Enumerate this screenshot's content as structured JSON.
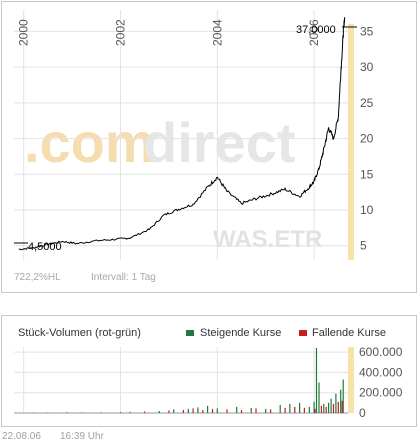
{
  "colors": {
    "price_line": "#000000",
    "grid": "#e3e3e3",
    "tick_text": "#555555",
    "muted_text": "#a9a9a9",
    "highlight_bar": "#f7e3a8",
    "watermark": "#d5d5d5",
    "watermark_accent": "#f6ddb0",
    "volume_up": "#1f7a3a",
    "volume_down": "#c81e1e"
  },
  "watermark": {
    "part1": ".com",
    "part2": "direct",
    "symbol": "WAS.ETR"
  },
  "price_panel": {
    "high_label": "37,0000",
    "low_label": "4,5000",
    "change_text": "722,2%HL",
    "interval_text": "Intervall: 1 Tag"
  },
  "volume_panel": {
    "title": "Stück-Volumen (rot-grün)",
    "legend_up": "Steigende Kurse",
    "legend_down": "Fallende Kurse"
  },
  "footer": {
    "date": "22.08.06",
    "time": "16:39 Uhr"
  },
  "chart_data": [
    {
      "type": "line",
      "series": [
        {
          "x": [
            1999.9,
            2000.2,
            2000.5,
            2000.8,
            2001.1,
            2001.5,
            2001.9,
            2002.2,
            2002.6,
            2002.9,
            2003.2,
            2003.5,
            2003.8,
            2004.0,
            2004.2,
            2004.5,
            2004.8,
            2005.1,
            2005.4,
            2005.7,
            2005.9,
            2006.0,
            2006.1,
            2006.2,
            2006.3,
            2006.4,
            2006.5,
            2006.55,
            2006.6,
            2006.63
          ],
          "y": [
            4.5,
            4.7,
            5.2,
            5.6,
            5.3,
            5.7,
            5.9,
            6.1,
            7.3,
            9.3,
            10.1,
            10.8,
            13.2,
            14.6,
            12.6,
            10.9,
            11.6,
            12.2,
            12.9,
            11.9,
            13.2,
            14.0,
            15.8,
            18.5,
            21.5,
            20.0,
            23.0,
            29.0,
            34.5,
            37.0
          ]
        }
      ],
      "xlabel": "",
      "ylabel": "",
      "x_ticks": [
        "2000",
        "2002",
        "2004",
        "2006"
      ],
      "y_ticks": [
        5,
        10,
        15,
        20,
        25,
        30,
        35
      ],
      "xlim": [
        1999.8,
        2006.7
      ],
      "ylim": [
        3,
        38
      ],
      "grid": true
    },
    {
      "type": "bar",
      "series": [
        {
          "name": "Steigende Kurse",
          "x": [
            2000.2,
            2000.9,
            2001.6,
            2002.2,
            2002.8,
            2003.1,
            2003.4,
            2003.6,
            2003.8,
            2004.0,
            2004.4,
            2004.7,
            2005.0,
            2005.3,
            2005.5,
            2005.7,
            2005.9,
            2006.0,
            2006.05,
            2006.1,
            2006.2,
            2006.3,
            2006.35,
            2006.45,
            2006.55,
            2006.6
          ],
          "values": [
            5000,
            8000,
            6000,
            12000,
            20000,
            35000,
            40000,
            55000,
            70000,
            45000,
            60000,
            50000,
            40000,
            80000,
            90000,
            100000,
            60000,
            110000,
            640000,
            300000,
            90000,
            100000,
            140000,
            190000,
            230000,
            330000
          ]
        },
        {
          "name": "Fallende Kurse",
          "x": [
            2000.5,
            2001.2,
            2002.0,
            2002.5,
            2003.0,
            2003.3,
            2003.5,
            2003.7,
            2003.9,
            2004.2,
            2004.5,
            2004.8,
            2005.1,
            2005.4,
            2005.6,
            2005.8,
            2006.02,
            2006.15,
            2006.25,
            2006.4,
            2006.5,
            2006.58
          ],
          "values": [
            4000,
            6000,
            9000,
            15000,
            25000,
            30000,
            45000,
            30000,
            40000,
            35000,
            30000,
            45000,
            35000,
            50000,
            60000,
            50000,
            40000,
            70000,
            60000,
            90000,
            110000,
            120000
          ]
        }
      ],
      "y_ticks": [
        "0",
        "200.000",
        "400.000",
        "600.000"
      ],
      "xlim": [
        1999.8,
        2006.7
      ],
      "ylim": [
        0,
        650000
      ],
      "legend_position": "top-right"
    }
  ]
}
